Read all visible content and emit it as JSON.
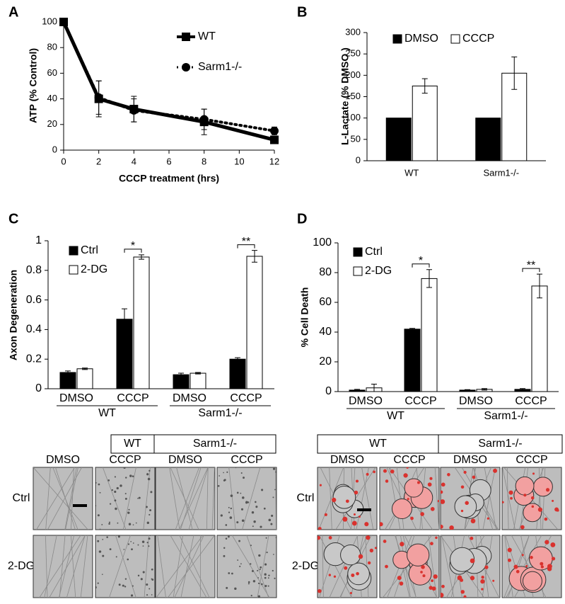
{
  "chart_data": [
    {
      "type": "line",
      "panel": "A",
      "xlabel": "CCCP treatment (hrs)",
      "ylabel": "ATP (% Control)",
      "x": [
        0,
        2,
        4,
        8,
        12
      ],
      "xlim": [
        0,
        12
      ],
      "xticks": [
        0,
        2,
        4,
        6,
        8,
        10,
        12
      ],
      "ylim": [
        0,
        100
      ],
      "yticks": [
        0,
        20,
        40,
        60,
        80,
        100
      ],
      "series": [
        {
          "name": "WT",
          "color": "#000000",
          "values": [
            100,
            40,
            32,
            22,
            8
          ],
          "errors": [
            0,
            14,
            10,
            10,
            3
          ]
        },
        {
          "name": "Sarm1-/-",
          "color": "#000000",
          "values": [
            100,
            41,
            31,
            24,
            15
          ],
          "errors": [
            0,
            13,
            9,
            8,
            3
          ]
        }
      ]
    },
    {
      "type": "bar",
      "panel": "B",
      "ylabel": "L-Lactate (% DMSO )",
      "categories": [
        "WT",
        "Sarm1-/-"
      ],
      "ylim": [
        0,
        300
      ],
      "yticks": [
        0,
        50,
        100,
        150,
        200,
        250,
        300
      ],
      "series": [
        {
          "name": "DMSO",
          "color": "#000000",
          "values": [
            100,
            100
          ]
        },
        {
          "name": "CCCP",
          "color": "#ffffff",
          "values": [
            175,
            205
          ],
          "errors": [
            17,
            38
          ]
        }
      ]
    },
    {
      "type": "bar",
      "panel": "C",
      "ylabel": "Axon Degeneration",
      "categories": [
        "DMSO",
        "CCCP",
        "DMSO",
        "CCCP"
      ],
      "groups": [
        "WT",
        "Sarm1-/-"
      ],
      "ylim": [
        0,
        1
      ],
      "yticks": [
        0,
        0.2,
        0.4,
        0.6,
        0.8,
        1
      ],
      "series": [
        {
          "name": "Ctrl",
          "color": "#000000",
          "values": [
            0.11,
            0.47,
            0.095,
            0.2
          ],
          "errors": [
            0.01,
            0.07,
            0.01,
            0.01
          ]
        },
        {
          "name": "2-DG",
          "color": "#ffffff",
          "values": [
            0.135,
            0.89,
            0.105,
            0.895
          ],
          "errors": [
            0.005,
            0.015,
            0.005,
            0.04
          ]
        }
      ],
      "annotations": [
        "*",
        "**"
      ]
    },
    {
      "type": "bar",
      "panel": "D",
      "ylabel": "% Cell Death",
      "categories": [
        "DMSO",
        "CCCP",
        "DMSO",
        "CCCP"
      ],
      "groups": [
        "WT",
        "Sarm1-/-"
      ],
      "ylim": [
        0,
        100
      ],
      "yticks": [
        0,
        20,
        40,
        60,
        80,
        100
      ],
      "series": [
        {
          "name": "Ctrl",
          "color": "#000000",
          "values": [
            1,
            42,
            1,
            1.5
          ],
          "errors": [
            0.5,
            0.5,
            0.3,
            0.5
          ]
        },
        {
          "name": "2-DG",
          "color": "#ffffff",
          "values": [
            2.5,
            76,
            1.5,
            71
          ],
          "errors": [
            2.5,
            6,
            0.5,
            8
          ]
        }
      ],
      "annotations": [
        "*",
        "**"
      ]
    }
  ],
  "micrographs": [
    {
      "column_groups": [
        "WT",
        "Sarm1-/-"
      ],
      "columns": [
        "DMSO",
        "CCCP",
        "DMSO",
        "CCCP"
      ],
      "rows": [
        "Ctrl",
        "2-DG"
      ]
    },
    {
      "column_groups": [
        "WT",
        "Sarm1-/-"
      ],
      "columns": [
        "DMSO",
        "CCCP",
        "DMSO",
        "CCCP"
      ],
      "rows": [
        "Ctrl",
        "2-DG"
      ]
    }
  ]
}
